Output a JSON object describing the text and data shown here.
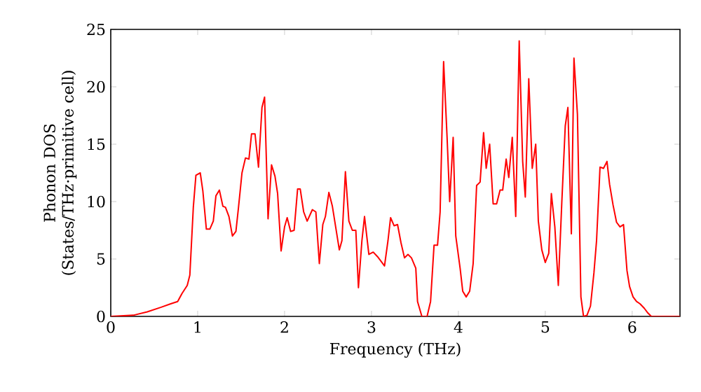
{
  "chart_data": {
    "type": "line",
    "xlabel": "Frequency (THz)",
    "ylabel": "Phonon DOS (States/THz·primitive cell)",
    "xlim": [
      0,
      6.55
    ],
    "ylim": [
      0,
      25
    ],
    "xticks": [
      0,
      1,
      2,
      3,
      4,
      5,
      6
    ],
    "yticks": [
      0,
      5,
      10,
      15,
      20,
      25
    ],
    "grid": false,
    "marker": "none",
    "line_style": "solid",
    "series": [
      {
        "color": "#ff0000",
        "x": [
          0,
          0.26,
          0.42,
          0.58,
          0.69,
          0.77,
          0.82,
          0.88,
          0.91,
          0.95,
          0.98,
          1.03,
          1.06,
          1.1,
          1.14,
          1.18,
          1.21,
          1.25,
          1.29,
          1.32,
          1.36,
          1.4,
          1.44,
          1.47,
          1.51,
          1.55,
          1.59,
          1.62,
          1.66,
          1.7,
          1.74,
          1.77,
          1.81,
          1.85,
          1.89,
          1.92,
          1.96,
          2.0,
          2.03,
          2.07,
          2.11,
          2.15,
          2.18,
          2.22,
          2.26,
          2.32,
          2.36,
          2.4,
          2.44,
          2.47,
          2.51,
          2.55,
          2.63,
          2.66,
          2.7,
          2.74,
          2.78,
          2.82,
          2.85,
          2.89,
          2.92,
          2.97,
          3.02,
          3.07,
          3.15,
          3.19,
          3.22,
          3.26,
          3.3,
          3.34,
          3.38,
          3.42,
          3.46,
          3.51,
          3.53,
          3.58,
          3.64,
          3.68,
          3.72,
          3.76,
          3.79,
          3.83,
          3.87,
          3.9,
          3.94,
          3.97,
          4.02,
          4.05,
          4.09,
          4.13,
          4.17,
          4.21,
          4.25,
          4.29,
          4.32,
          4.36,
          4.4,
          4.44,
          4.48,
          4.51,
          4.55,
          4.58,
          4.62,
          4.66,
          4.7,
          4.74,
          4.77,
          4.81,
          4.85,
          4.89,
          4.92,
          4.96,
          5.0,
          5.04,
          5.07,
          5.11,
          5.15,
          5.19,
          5.23,
          5.26,
          5.3,
          5.33,
          5.37,
          5.41,
          5.44,
          5.48,
          5.52,
          5.56,
          5.59,
          5.63,
          5.67,
          5.71,
          5.74,
          5.78,
          5.82,
          5.86,
          5.9,
          5.94,
          5.97,
          6.01,
          6.05,
          6.09,
          6.14,
          6.18,
          6.22,
          6.55
        ],
        "values": [
          0,
          0.1,
          0.4,
          0.8,
          1.1,
          1.3,
          2.0,
          2.7,
          3.6,
          9.5,
          12.3,
          12.5,
          10.9,
          7.6,
          7.6,
          8.3,
          10.5,
          11.0,
          9.6,
          9.5,
          8.7,
          7.0,
          7.4,
          9.5,
          12.5,
          13.8,
          13.7,
          15.9,
          15.9,
          13.0,
          18.2,
          19.1,
          8.5,
          13.2,
          12.2,
          10.7,
          5.7,
          7.8,
          8.6,
          7.4,
          7.5,
          11.1,
          11.1,
          9.1,
          8.3,
          9.3,
          9.1,
          4.6,
          8.0,
          8.7,
          10.8,
          9.6,
          5.8,
          6.6,
          12.6,
          8.3,
          7.5,
          7.5,
          2.5,
          6.6,
          8.7,
          5.4,
          5.6,
          5.2,
          4.4,
          6.6,
          8.6,
          7.9,
          8.0,
          6.4,
          5.1,
          5.4,
          5.1,
          4.2,
          1.3,
          0,
          0,
          1.3,
          6.2,
          6.2,
          9.1,
          22.2,
          15.6,
          10.0,
          15.6,
          7.0,
          4.2,
          2.2,
          1.7,
          2.2,
          4.6,
          11.4,
          11.7,
          16.0,
          12.9,
          15.0,
          9.8,
          9.8,
          11.0,
          11.0,
          13.7,
          12.1,
          15.6,
          8.7,
          24.0,
          13.5,
          10.4,
          20.7,
          12.9,
          15.0,
          8.3,
          5.8,
          4.7,
          5.5,
          10.7,
          7.8,
          2.7,
          9.9,
          16.6,
          18.2,
          7.2,
          22.5,
          17.6,
          1.7,
          0,
          0.1,
          0.9,
          3.8,
          6.6,
          13.0,
          12.9,
          13.5,
          11.5,
          9.7,
          8.2,
          7.8,
          8.0,
          4.0,
          2.6,
          1.7,
          1.3,
          1.1,
          0.7,
          0.3,
          0,
          0
        ]
      }
    ]
  }
}
